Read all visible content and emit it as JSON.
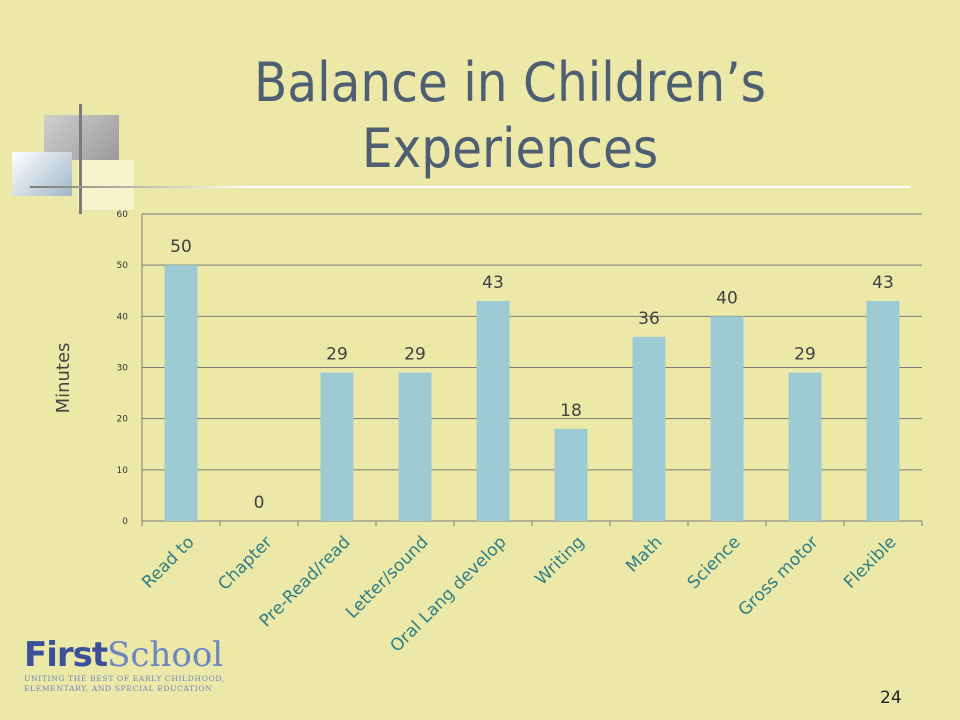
{
  "slide": {
    "title": "Balance in Children’s Experiences",
    "page_number": "24"
  },
  "brand": {
    "name_first": "First",
    "name_second": "School",
    "tagline": "UNITING THE BEST OF EARLY CHILDHOOD, ELEMENTARY, AND SPECIAL EDUCATION"
  },
  "colors": {
    "background": "#ece8a8",
    "bar": "#9ecad6",
    "title": "#4f5f73",
    "axis": "#7a7a7a"
  },
  "chart_data": {
    "type": "bar",
    "title": "",
    "xlabel": "",
    "ylabel": "Minutes",
    "ylim": [
      0,
      60
    ],
    "yticks": [
      0,
      10,
      20,
      30,
      40,
      50,
      60
    ],
    "grid": true,
    "legend": "none",
    "categories": [
      "Read to",
      "Chapter",
      "Pre-Read/read",
      "Letter/sound",
      "Oral Lang develop",
      "Writing",
      "Math",
      "Science",
      "Gross motor",
      "Flexible"
    ],
    "series": [
      {
        "values": [
          50,
          0,
          29,
          29,
          43,
          18,
          36,
          40,
          29,
          43
        ],
        "data_labels": [
          "50",
          "0",
          "29",
          "29",
          "43",
          "18",
          "36",
          "40",
          "29",
          "43"
        ]
      }
    ]
  }
}
